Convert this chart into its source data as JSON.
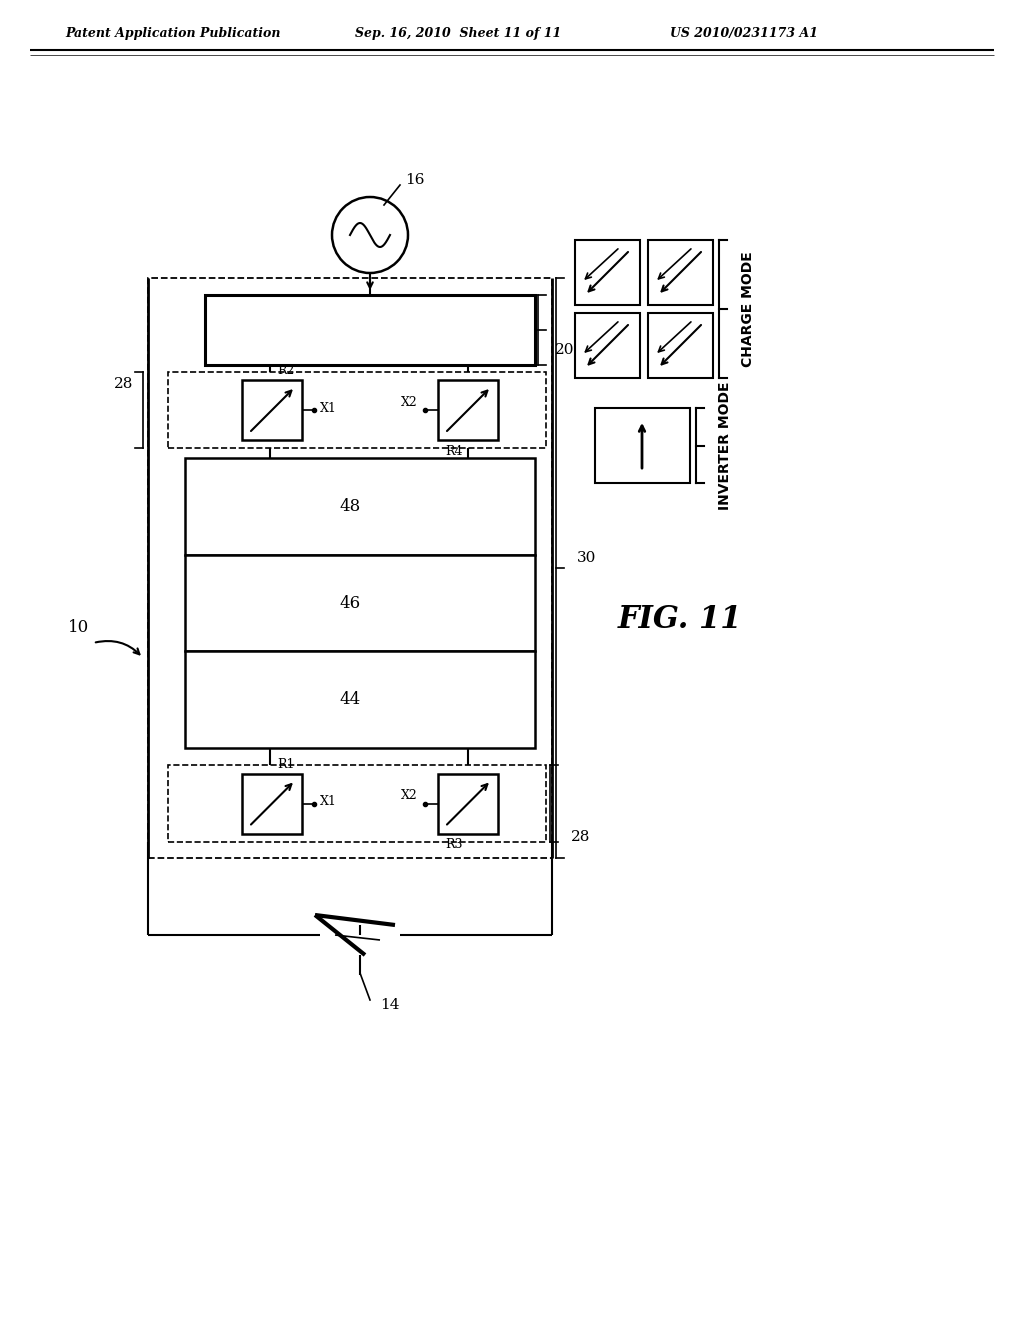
{
  "header_left": "Patent Application Publication",
  "header_mid": "Sep. 16, 2010  Sheet 11 of 11",
  "header_right": "US 2010/0231173 A1",
  "fig_label": "FIG. 11",
  "label_10": "10",
  "label_14": "14",
  "label_16": "16",
  "label_20": "20",
  "label_28_top": "28",
  "label_28_bot": "28",
  "label_30": "30",
  "label_44": "44",
  "label_46": "46",
  "label_48": "48",
  "label_R1": "R1",
  "label_R2": "R2",
  "label_R3": "R3",
  "label_R4": "R4",
  "label_X1_top": "X1",
  "label_X1_bot": "X1",
  "label_X2_top": "X2",
  "label_X2_bot": "X2",
  "label_charge_mode": "CHARGE MODE",
  "label_inverter_mode": "INVERTER MODE",
  "bg_color": "#ffffff",
  "line_color": "#000000"
}
